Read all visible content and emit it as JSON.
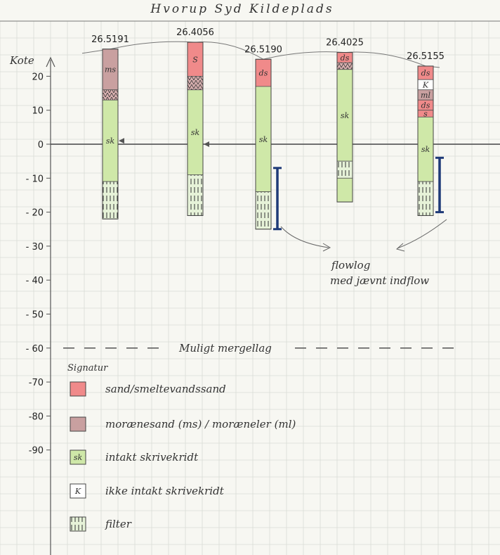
{
  "title": "Hvorup Syd Kildeplads",
  "axis": {
    "label": "Kote",
    "ticks": [
      20,
      10,
      0,
      -10,
      -20,
      -30,
      -40,
      -50,
      -60,
      -70,
      -80,
      -90
    ],
    "tick_labels": [
      "20",
      "10",
      "0",
      "- 10",
      "- 20",
      "- 30",
      "- 40",
      "- 50",
      "- 60",
      "-70",
      "-80",
      "-90"
    ]
  },
  "boreholes": [
    {
      "id": "26.5191",
      "top": 28,
      "bottom": -22,
      "layers": [
        {
          "from": 28,
          "to": 16,
          "type": "moraene",
          "label": "ms"
        },
        {
          "from": 16,
          "to": 13,
          "type": "moraene_mark",
          "label": ""
        },
        {
          "from": 13,
          "to": -11,
          "type": "skrivekridt",
          "label": "sk"
        },
        {
          "from": -11,
          "to": -22,
          "type": "filter",
          "label": ""
        }
      ],
      "water_level": 1
    },
    {
      "id": "26.4056",
      "top": 30,
      "bottom": -21,
      "layers": [
        {
          "from": 30,
          "to": 20,
          "type": "sand",
          "label": "S"
        },
        {
          "from": 20,
          "to": 16,
          "type": "moraene_mark",
          "label": ""
        },
        {
          "from": 16,
          "to": -9,
          "type": "skrivekridt",
          "label": "sk"
        },
        {
          "from": -9,
          "to": -21,
          "type": "filter",
          "label": ""
        }
      ],
      "water_level": 0
    },
    {
      "id": "26.5190",
      "top": 25,
      "bottom": -25,
      "layers": [
        {
          "from": 25,
          "to": 17,
          "type": "sand",
          "label": "ds"
        },
        {
          "from": 17,
          "to": -14,
          "type": "skrivekridt",
          "label": "sk"
        },
        {
          "from": -14,
          "to": -25,
          "type": "filter",
          "label": ""
        }
      ],
      "flowlog": {
        "from": -7,
        "to": -25
      }
    },
    {
      "id": "26.4025",
      "top": 27,
      "bottom": -17,
      "layers": [
        {
          "from": 27,
          "to": 24,
          "type": "sand",
          "label": "ds"
        },
        {
          "from": 24,
          "to": 22,
          "type": "moraene_mark",
          "label": ""
        },
        {
          "from": 22,
          "to": -5,
          "type": "skrivekridt",
          "label": "sk"
        },
        {
          "from": -5,
          "to": -10,
          "type": "filter",
          "label": ""
        },
        {
          "from": -10,
          "to": -17,
          "type": "skrivekridt",
          "label": ""
        }
      ]
    },
    {
      "id": "26.5155",
      "top": 23,
      "bottom": -21,
      "layers": [
        {
          "from": 23,
          "to": 19,
          "type": "sand",
          "label": "ds"
        },
        {
          "from": 19,
          "to": 16,
          "type": "kridt_ikke",
          "label": "K"
        },
        {
          "from": 16,
          "to": 13,
          "type": "moraene",
          "label": "ml"
        },
        {
          "from": 13,
          "to": 10,
          "type": "sand",
          "label": "ds"
        },
        {
          "from": 10,
          "to": 8,
          "type": "sand",
          "label": "s"
        },
        {
          "from": 8,
          "to": -11,
          "type": "skrivekridt",
          "label": "sk"
        },
        {
          "from": -11,
          "to": -21,
          "type": "filter",
          "label": ""
        }
      ],
      "flowlog": {
        "from": -4,
        "to": -20
      }
    }
  ],
  "annotations": {
    "flowlog_line1": "flowlog",
    "flowlog_line2": "med jævnt indflow",
    "mergellag": "Muligt mergellag"
  },
  "legend": {
    "title": "Signatur",
    "items": [
      {
        "type": "sand",
        "code": "",
        "label": "sand/smeltevandssand"
      },
      {
        "type": "moraene",
        "code": "",
        "label": "morænesand (ms) / moræneler (ml)"
      },
      {
        "type": "skrivekridt",
        "code": "sk",
        "label": "intakt skrivekridt"
      },
      {
        "type": "kridt_ikke",
        "code": "K",
        "label": "ikke intakt skrivekridt"
      },
      {
        "type": "filter",
        "code": "",
        "label": "filter"
      }
    ]
  },
  "colors": {
    "sand": "#f08a8a",
    "moraene": "#c9a0a0",
    "skrivekridt": "#cfe8a8",
    "kridt_ikke": "#ffffff",
    "filter": "#e6f2d8",
    "flowlog": "#1f3a78",
    "grid": "#d9dcd6",
    "ink": "#444444"
  }
}
